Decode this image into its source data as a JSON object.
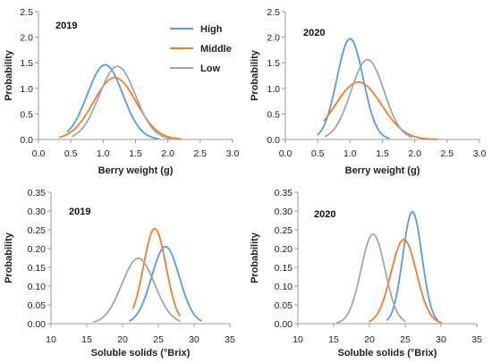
{
  "colors": {
    "High": "#5B9BD5",
    "Middle": "#ED7D31",
    "Low": "#A5A5A5"
  },
  "legend": [
    "High",
    "Middle",
    "Low"
  ],
  "chart_data": [
    {
      "type": "line",
      "title": "2019",
      "xlabel": "Berry weight (g)",
      "ylabel": "Probability",
      "xlim": [
        0.0,
        3.0
      ],
      "ylim": [
        0,
        2.5
      ],
      "xticks": [
        "0.0",
        "0.5",
        "1.0",
        "1.5",
        "2.0",
        "2.5",
        "3.0"
      ],
      "yticks": [
        "0.0",
        "0.5",
        "1.0",
        "1.5",
        "2.0",
        "2.5"
      ],
      "legend_position": "top-right",
      "series": [
        {
          "name": "High",
          "mean": 1.03,
          "peak": 1.46,
          "x_range": [
            0.45,
            1.85
          ]
        },
        {
          "name": "Middle",
          "mean": 1.18,
          "peak": 1.21,
          "x_range": [
            0.33,
            2.2
          ]
        },
        {
          "name": "Low",
          "mean": 1.22,
          "peak": 1.43,
          "x_range": [
            0.52,
            2.05
          ]
        }
      ]
    },
    {
      "type": "line",
      "title": "2020",
      "xlabel": "Berry weight (g)",
      "ylabel": "Probability",
      "xlim": [
        0.0,
        3.0
      ],
      "ylim": [
        0,
        2.5
      ],
      "xticks": [
        "0.0",
        "0.5",
        "1.0",
        "1.5",
        "2.0",
        "2.5",
        "3.0"
      ],
      "yticks": [
        "0.0",
        "0.5",
        "1.0",
        "1.5",
        "2.0",
        "2.5"
      ],
      "series": [
        {
          "name": "High",
          "mean": 1.0,
          "peak": 1.97,
          "x_range": [
            0.5,
            1.6
          ]
        },
        {
          "name": "Middle",
          "mean": 1.13,
          "peak": 1.12,
          "x_range": [
            0.6,
            2.35
          ]
        },
        {
          "name": "Low",
          "mean": 1.27,
          "peak": 1.56,
          "x_range": [
            0.62,
            1.95
          ]
        }
      ]
    },
    {
      "type": "line",
      "title": "2019",
      "xlabel": "Soluble solids (°Brix)",
      "ylabel": "Probability",
      "xlim": [
        10,
        35
      ],
      "ylim": [
        0,
        0.35
      ],
      "xticks": [
        "10",
        "15",
        "20",
        "25",
        "30",
        "35"
      ],
      "yticks": [
        "0.00",
        "0.05",
        "0.10",
        "0.15",
        "0.20",
        "0.25",
        "0.30",
        "0.35"
      ],
      "series": [
        {
          "name": "High",
          "mean": 26.0,
          "peak": 0.205,
          "x_range": [
            21.0,
            31.0
          ]
        },
        {
          "name": "Middle",
          "mean": 24.5,
          "peak": 0.253,
          "x_range": [
            21.5,
            28.0
          ]
        },
        {
          "name": "Low",
          "mean": 22.2,
          "peak": 0.174,
          "x_range": [
            16.0,
            28.0
          ]
        }
      ]
    },
    {
      "type": "line",
      "title": "2020",
      "xlabel": "Soluble solids (°Brix)",
      "ylabel": "Probability",
      "xlim": [
        10,
        35
      ],
      "ylim": [
        0,
        0.35
      ],
      "xticks": [
        "10",
        "15",
        "20",
        "25",
        "30",
        "35"
      ],
      "yticks": [
        "0.00",
        "0.05",
        "0.10",
        "0.15",
        "0.20",
        "0.25",
        "0.30",
        "0.35"
      ],
      "series": [
        {
          "name": "High",
          "mean": 26.0,
          "peak": 0.298,
          "x_range": [
            22.5,
            29.5
          ]
        },
        {
          "name": "Middle",
          "mean": 24.8,
          "peak": 0.224,
          "x_range": [
            20.0,
            30.0
          ]
        },
        {
          "name": "Low",
          "mean": 20.5,
          "peak": 0.238,
          "x_range": [
            15.5,
            25.0
          ]
        }
      ]
    }
  ]
}
